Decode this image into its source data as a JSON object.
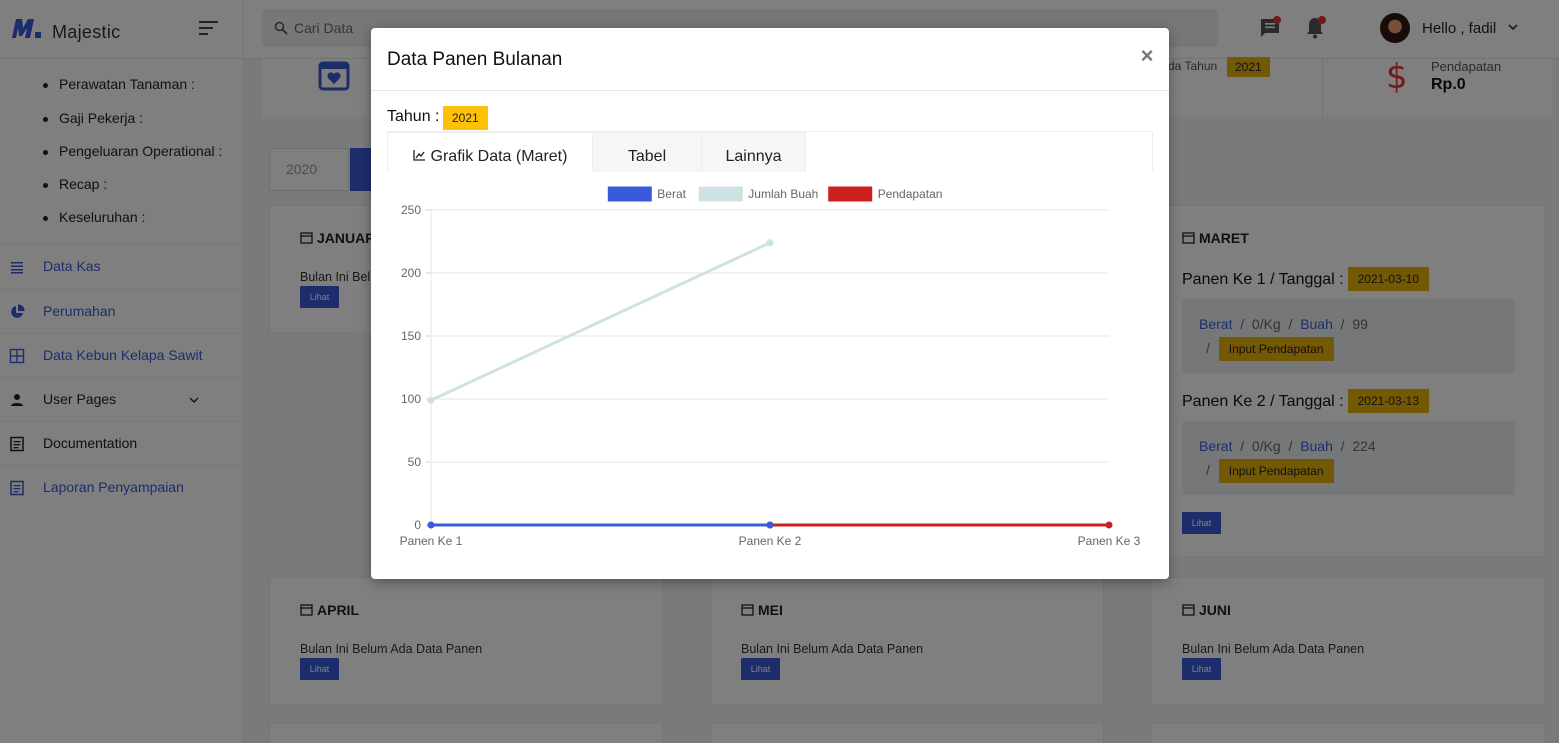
{
  "brand": {
    "name": "Majestic"
  },
  "search": {
    "placeholder": "Cari Data"
  },
  "user": {
    "greeting": "Hello , fadil"
  },
  "sidebar": {
    "sub_items": [
      {
        "label": "Perawatan Tanaman :"
      },
      {
        "label": "Gaji Pekerja :"
      },
      {
        "label": "Pengeluaran Operational :"
      },
      {
        "label": "Recap :"
      },
      {
        "label": "Keseluruhan :"
      }
    ],
    "items": [
      {
        "label": "Data Kas",
        "icon": "list-icon",
        "color": "#3a5bd9"
      },
      {
        "label": "Perumahan",
        "icon": "pie-chart-icon",
        "color": "#3a5bd9"
      },
      {
        "label": "Data Kebun Kelapa Sawit",
        "icon": "grid-icon",
        "color": "#3a5bd9"
      },
      {
        "label": "User Pages",
        "icon": "user-icon",
        "color": "#222222"
      },
      {
        "label": "Documentation",
        "icon": "document-icon",
        "color": "#222222"
      },
      {
        "label": "Laporan Penyampaian",
        "icon": "report-icon",
        "color": "#3a5bd9"
      }
    ]
  },
  "stats": {
    "tahun_text": "da Tahun",
    "tahun_badge": "2021",
    "pendapatan_label": "Pendapatan",
    "pendapatan_value": "Rp.0"
  },
  "filter": {
    "year": "2020"
  },
  "months": {
    "januari": {
      "title": "JANUAR",
      "empty": "Bulan Ini Bel",
      "button": "Lihat"
    },
    "maret": {
      "title": "MARET",
      "button": "Lihat",
      "panen": [
        {
          "title": "Panen Ke 1 / Tanggal :",
          "date": "2021-03-10",
          "berat_label": "Berat",
          "berat": "0/Kg",
          "buah_label": "Buah",
          "buah": "99",
          "input_label": "Input Pendapatan"
        },
        {
          "title": "Panen Ke 2 / Tanggal :",
          "date": "2021-03-13",
          "berat_label": "Berat",
          "berat": "0/Kg",
          "buah_label": "Buah",
          "buah": "224",
          "input_label": "Input Pendapatan"
        }
      ]
    },
    "april": {
      "title": "APRIL",
      "empty": "Bulan Ini Belum Ada Data Panen",
      "button": "Lihat"
    },
    "mei": {
      "title": "MEI",
      "empty": "Bulan Ini Belum Ada Data Panen",
      "button": "Lihat"
    },
    "juni": {
      "title": "JUNI",
      "empty": "Bulan Ini Belum Ada Data Panen",
      "button": "Lihat"
    }
  },
  "modal": {
    "title": "Data Panen Bulanan",
    "close": "×",
    "tahun_label": "Tahun :",
    "tahun_value": "2021",
    "tabs": [
      {
        "label": "Grafik Data (Maret)"
      },
      {
        "label": "Tabel"
      },
      {
        "label": "Lainnya"
      }
    ]
  },
  "colors": {
    "accent": "#3a5bd9",
    "badge": "#ffc107",
    "danger": "#e3342f"
  },
  "chart_data": {
    "type": "line",
    "x": [
      "Panen Ke 1",
      "Panen Ke 2",
      "Panen Ke 3"
    ],
    "series": [
      {
        "name": "Berat",
        "color": "#3a5bd9",
        "values": [
          0,
          0,
          null
        ]
      },
      {
        "name": "Jumlah Buah",
        "color": "#cfe2e3",
        "values": [
          99,
          224,
          null
        ]
      },
      {
        "name": "Pendapatan",
        "color": "#cc2020",
        "values": [
          null,
          0,
          0
        ]
      }
    ],
    "ylim": [
      0,
      250
    ],
    "yticks": [
      0,
      50,
      100,
      150,
      200,
      250
    ],
    "grid": true,
    "legend": "top"
  }
}
